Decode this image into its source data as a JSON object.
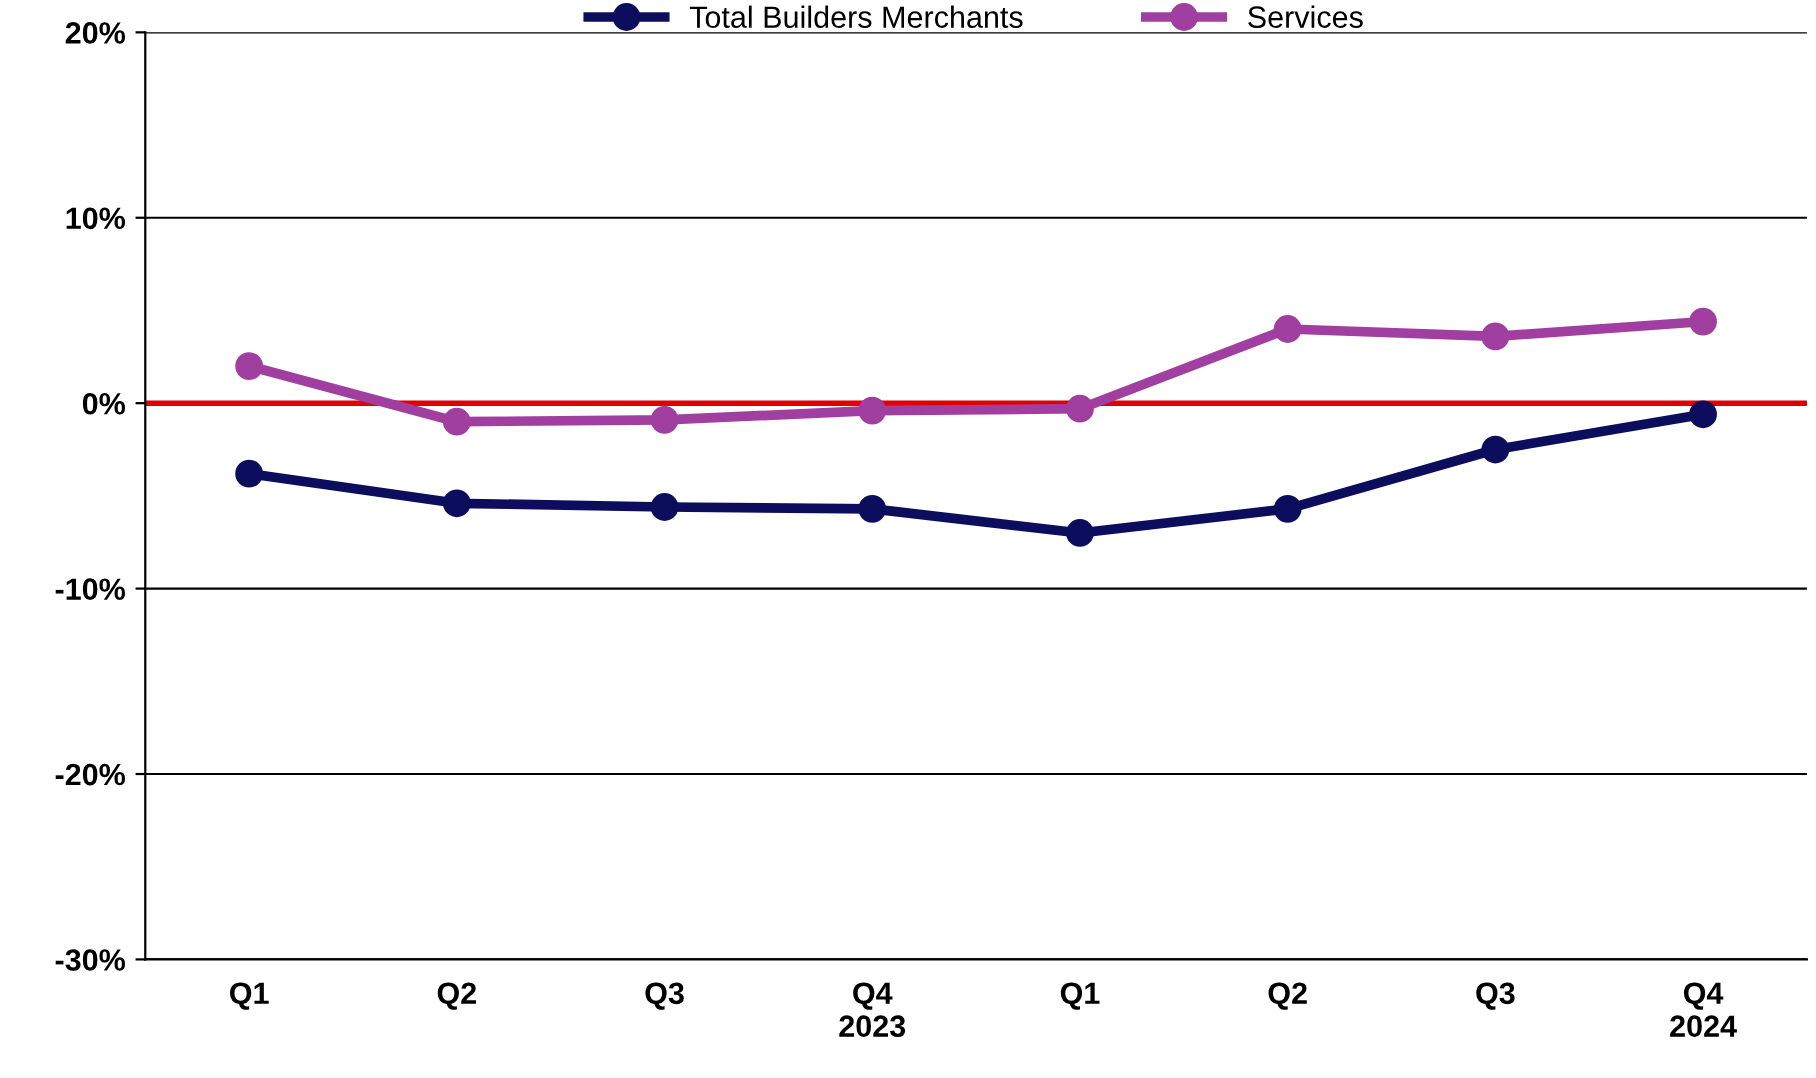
{
  "chart_data": {
    "type": "line",
    "categories": [
      "Q1",
      "Q2",
      "Q3",
      "Q4\n2023",
      "Q1",
      "Q2",
      "Q3",
      "Q4\n2024"
    ],
    "series": [
      {
        "name": "Total Builders Merchants",
        "color": "#0d0d5e",
        "values": [
          -3.8,
          -5.4,
          -5.6,
          -5.7,
          -7.0,
          -5.7,
          -2.5,
          -0.6
        ]
      },
      {
        "name": "Services",
        "color": "#a03fa0",
        "values": [
          2.0,
          -1.0,
          -0.9,
          -0.4,
          -0.3,
          4.0,
          3.6,
          4.4
        ]
      }
    ],
    "ylim": [
      -30,
      20
    ],
    "yticks": [
      {
        "value": -30,
        "label": "-30%"
      },
      {
        "value": -20,
        "label": "-20%"
      },
      {
        "value": -10,
        "label": "-10%"
      },
      {
        "value": 0,
        "label": "0%"
      },
      {
        "value": 10,
        "label": "10%"
      },
      {
        "value": 20,
        "label": "20%"
      }
    ],
    "ref_lines": [
      {
        "axis": "y",
        "value": 0,
        "color": "#e00000",
        "line_style": "solid"
      }
    ],
    "grid": "y",
    "legend": "top",
    "marker": "circle",
    "line_style": "solid"
  }
}
